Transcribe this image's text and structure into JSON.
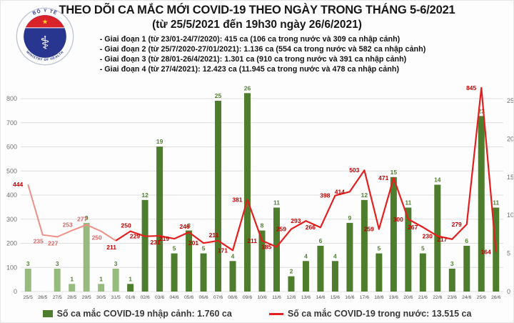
{
  "header": {
    "logo": {
      "top_text": "BỘ Y TẾ",
      "bottom_text": "MINISTRY OF HEALTH",
      "symbol": "staff-of-aesculapius",
      "star": "★"
    },
    "title_line1": "THEO DÕI CA MẮC MỚI COVID-19 THEO NGÀY TRONG THÁNG 5-6/2021",
    "title_line2": "(từ 25/5/2021 đến 19h30 ngày 26/6/2021)",
    "bullets": [
      "- Giai đoạn 1 (từ 23/01-24/7/2020): 415 ca (106 ca trong nước và 309 ca nhập cảnh)",
      "- Giai đoạn 2 (từ 25/7/2020-27/01/2021): 1.136 ca (554 ca trong nước và 582 ca nhập cảnh)",
      "- Giai đoạn 3 (từ 28/01-26/4/2021): 1.301 ca (910 ca trong nước và 391 ca nhập cảnh)",
      "- Giai đoạn 4 (từ 27/4/2021): 12.423 ca (11.945 ca trong nước và 478 ca nhập cảnh)"
    ]
  },
  "chart_data": {
    "type": "combo-bar-line",
    "title": "THEO DÕI CA MẮC MỚI COVID-19 THEO NGÀY TRONG THÁNG 5-6/2021",
    "categories": [
      "25/5",
      "26/5",
      "27/5",
      "28/5",
      "29/5",
      "30/5",
      "31/5",
      "01/6",
      "02/6",
      "03/6",
      "04/6",
      "05/6",
      "06/6",
      "07/6",
      "08/6",
      "09/6",
      "10/6",
      "11/6",
      "12/6",
      "13/6",
      "14/6",
      "15/6",
      "16/6",
      "17/6",
      "18/6",
      "19/6",
      "20/6",
      "21/6",
      "22/6",
      "23/6",
      "24/6",
      "25/6",
      "26/6"
    ],
    "series": [
      {
        "name": "Số ca mắc COVID-19 nhập cảnh",
        "type": "bar",
        "axis": "right",
        "values": [
          3,
          0,
          3,
          1,
          9,
          1,
          3,
          1,
          12,
          19,
          5,
          8,
          5,
          25,
          4,
          26,
          8,
          11,
          2,
          4,
          6,
          4,
          9,
          12,
          5,
          15,
          11,
          5,
          14,
          3,
          6,
          23,
          11
        ]
      },
      {
        "name": "Số ca mắc COVID-19 trong nước",
        "type": "line",
        "axis": "left",
        "values": [
          444,
          235,
          227,
          253,
          277,
          250,
          211,
          250,
          229,
          231,
          219,
          246,
          201,
          211,
          171,
          381,
          211,
          185,
          259,
          293,
          266,
          398,
          414,
          503,
          259,
          471,
          300,
          267,
          230,
          217,
          279,
          845,
          164
        ]
      }
    ],
    "left_axis": {
      "min": 0,
      "max": 800,
      "step": 100
    },
    "right_axis": {
      "min": 0,
      "max": 25,
      "step": 5
    },
    "grid": true,
    "legend_position": "bottom",
    "faded_until_index": 6,
    "line_label_sides": [
      "l",
      "b",
      "b",
      "a",
      "a",
      "b",
      "b",
      "a",
      "l",
      "b",
      "l",
      "a",
      "l",
      "a",
      "l",
      "l",
      "l",
      "l",
      "l",
      "l",
      "l",
      "l",
      "l",
      "l",
      "l",
      "l",
      "l",
      "l",
      "l",
      "l",
      "l",
      "l",
      "l"
    ],
    "colors": {
      "bar": "#4e7d2d",
      "bar_faded": "#97ba7f",
      "bar_label": "#538135",
      "line": "#e41f1f",
      "line_faded": "#ee9086",
      "line_label": "#c00000",
      "line_label_faded": "#d66a6a",
      "axis_text": "#737373",
      "x_text": "#4d4d4d",
      "grid": "#dedede"
    }
  },
  "legend": {
    "items": [
      {
        "label": "Số ca mắc COVID-19 nhập cảnh: 1.760 ca",
        "swatch": "bar"
      },
      {
        "label": "Số ca mắc COVID-19 trong nước: 13.515 ca",
        "swatch": "line"
      }
    ]
  }
}
